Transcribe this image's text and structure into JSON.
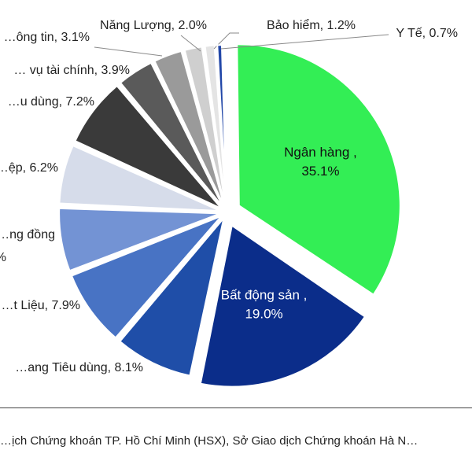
{
  "chart_data": {
    "type": "pie",
    "title": "",
    "slices": [
      {
        "label": "Ngân hàng",
        "value": 35.1,
        "value_text": "35.1%",
        "color": "#33ee55",
        "label_color": "#111111"
      },
      {
        "label": "Bất động sản",
        "value": 19.0,
        "value_text": "19.0%",
        "color": "#0b2d8a",
        "label_color": "#ffffff"
      },
      {
        "label": "…ang Tiêu dùng",
        "value": 8.1,
        "value_text": "8.1%",
        "color": "#1f4ea8"
      },
      {
        "label": "…t Liệu",
        "value": 7.9,
        "value_text": "7.9%",
        "color": "#4873c4"
      },
      {
        "label": "…ng đồng",
        "value": 6.6,
        "value_text": "…%",
        "color": "#7393d4"
      },
      {
        "label": "…ệp",
        "value": 6.2,
        "value_text": "6.2%",
        "color": "#d6dcea"
      },
      {
        "label": "…u dùng",
        "value": 7.2,
        "value_text": "7.2%",
        "color": "#3a3a3a"
      },
      {
        "label": "… vụ tài chính",
        "value": 3.9,
        "value_text": "3.9%",
        "color": "#5a5a5a"
      },
      {
        "label": "…ông tin",
        "value": 3.1,
        "value_text": "3.1%",
        "color": "#9a9a9a"
      },
      {
        "label": "Năng Lượng",
        "value": 2.0,
        "value_text": "2.0%",
        "color": "#cfcfcf"
      },
      {
        "label": "Bảo hiểm",
        "value": 1.2,
        "value_text": "1.2%",
        "color": "#e4e4e4"
      },
      {
        "label": "Y Tế",
        "value": 0.7,
        "value_text": "0.7%",
        "color": "#2247a8"
      }
    ],
    "legend": "none"
  },
  "source_note": "…ịch Chứng khoán TP. Hồ Chí Minh (HSX), Sở Giao dịch Chứng khoán Hà N…"
}
